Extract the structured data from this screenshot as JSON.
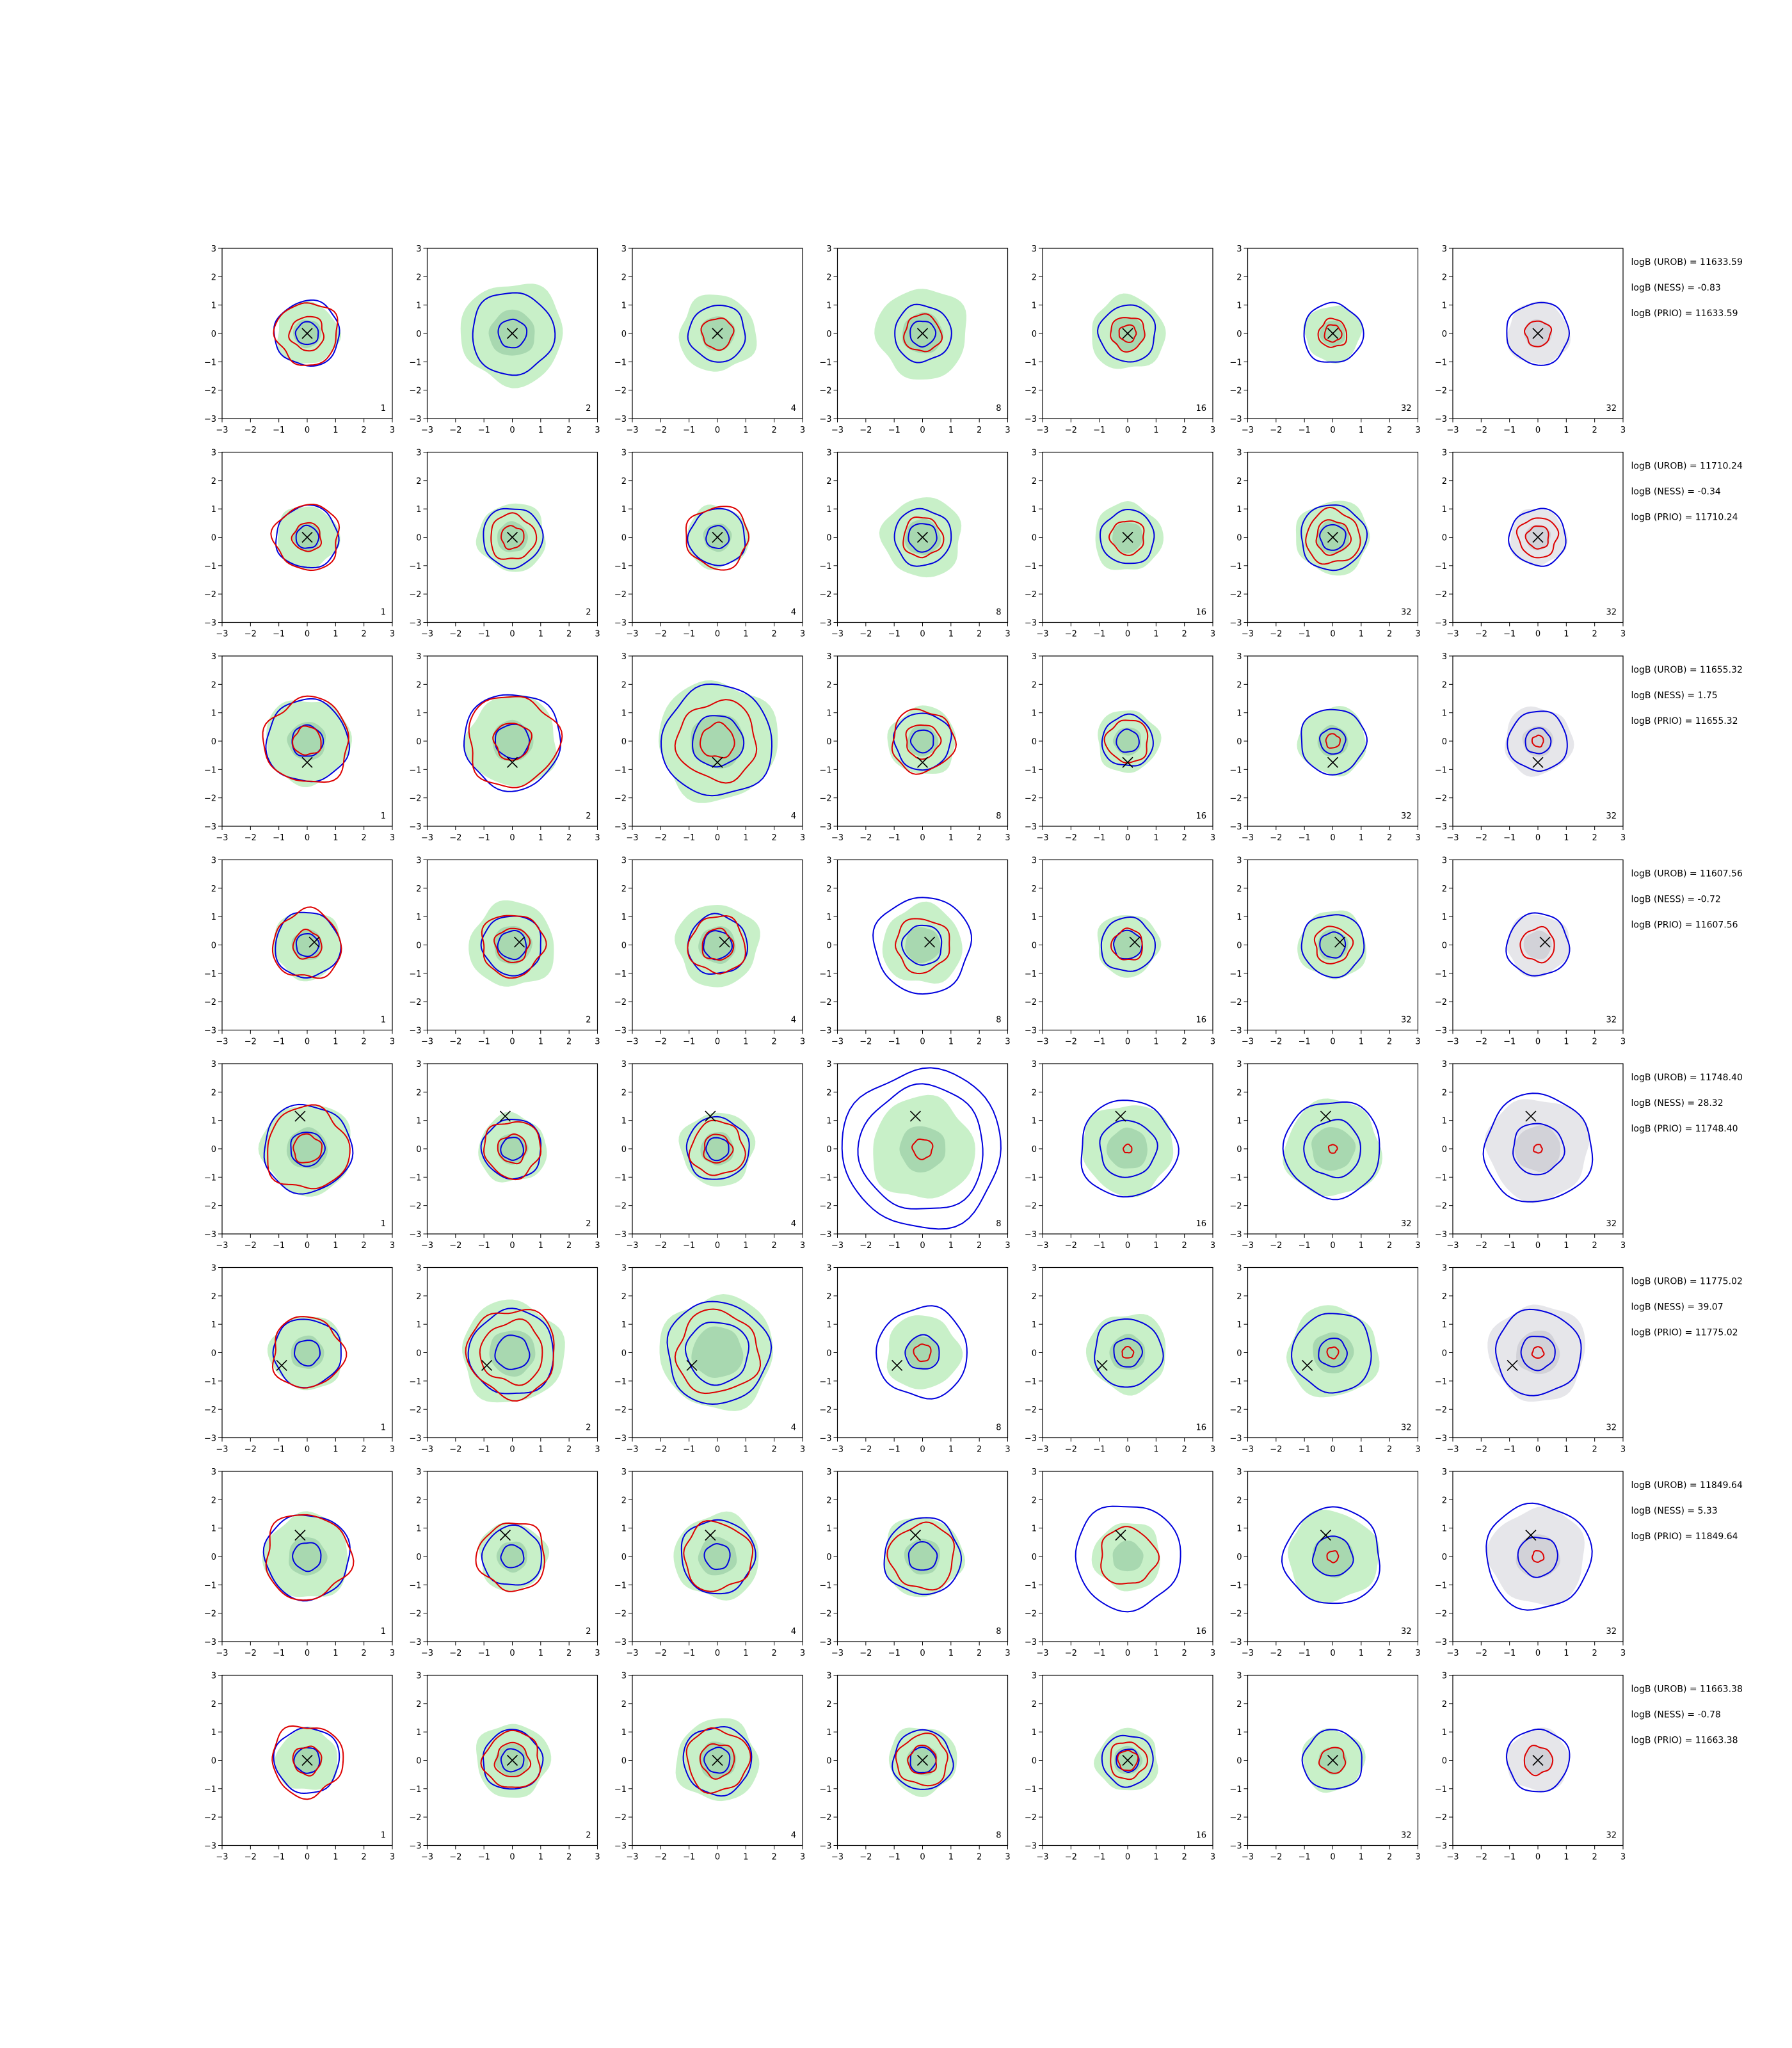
{
  "colors": {
    "shade_green": "#c8f0c8",
    "shade_green_dark": "#a8d8b0",
    "shade_grey": "#e6e6ea",
    "shade_grey_dark": "#d2d2d8",
    "blue_contour": "#0000dd",
    "red_contour": "#dd0000",
    "marker": "#000000",
    "frame": "#000000"
  },
  "chart_data": {
    "type": "contour",
    "xlim": [
      -3,
      3
    ],
    "ylim": [
      -3,
      3
    ],
    "ticks": [
      "−3",
      "−2",
      "−1",
      "0",
      "1",
      "2",
      "3"
    ],
    "tick_values": [
      -3,
      -2,
      -1,
      0,
      1,
      2,
      3
    ],
    "column_labels": [
      "1",
      "2",
      "4",
      "8",
      "16",
      "32",
      "32"
    ],
    "last_column_shade": "grey",
    "rows": [
      {
        "marker": [
          0,
          0
        ],
        "stats": [
          "logB (UROB) = 11633.59",
          "logB (NESS) = -0.83",
          "logB (PRIO) = 11633.59"
        ],
        "panels": [
          {
            "shade": 1.1,
            "blue": [
              1.15,
              0.4
            ],
            "red": [
              1.1,
              0.6
            ]
          },
          {
            "shade": 1.8,
            "blue": [
              1.45,
              0.5
            ],
            "red": []
          },
          {
            "shade": 1.35,
            "blue": [
              1.0
            ],
            "red": [
              0.55
            ]
          },
          {
            "shade": 1.6,
            "blue": [
              1.0,
              0.45
            ],
            "red": [
              0.65
            ]
          },
          {
            "shade": 1.3,
            "blue": [
              1.0
            ],
            "red": [
              0.6,
              0.3
            ]
          },
          {
            "shade": 1.0,
            "blue": [
              1.05
            ],
            "red": [
              0.5,
              0.3
            ]
          },
          {
            "shade": 1.1,
            "blue": [
              1.1
            ],
            "red": [
              0.45
            ]
          }
        ]
      },
      {
        "marker": [
          0,
          0
        ],
        "stats": [
          "logB (UROB) = 11710.24",
          "logB (NESS) = -0.34",
          "logB (PRIO) = 11710.24"
        ],
        "panels": [
          {
            "shade": 1.1,
            "blue": [
              1.1,
              0.4
            ],
            "red": [
              1.15,
              0.5
            ]
          },
          {
            "shade": 1.2,
            "blue": [
              1.05
            ],
            "red": [
              0.8,
              0.4
            ]
          },
          {
            "shade": 1.1,
            "blue": [
              1.0,
              0.4
            ],
            "red": [
              1.1
            ]
          },
          {
            "shade": 1.4,
            "blue": [
              1.0,
              0.5
            ],
            "red": [
              0.7
            ]
          },
          {
            "shade": 1.2,
            "blue": [
              0.95
            ],
            "red": [
              0.6
            ]
          },
          {
            "shade": 1.3,
            "blue": [
              1.15,
              0.45
            ],
            "red": [
              0.95,
              0.6
            ]
          },
          {
            "shade": 1.0,
            "blue": [
              1.0
            ],
            "red": [
              0.7,
              0.4
            ]
          }
        ]
      },
      {
        "marker": [
          0,
          -0.75
        ],
        "stats": [
          "logB (UROB) = 11655.32",
          "logB (NESS) = 1.75",
          "logB (PRIO) = 11655.32"
        ],
        "panels": [
          {
            "shade": 1.5,
            "blue": [
              1.45,
              0.55
            ],
            "red": [
              1.5,
              0.5
            ]
          },
          {
            "shade": 1.6,
            "blue": [
              1.7,
              0.6
            ],
            "red": [
              1.6,
              0.65
            ]
          },
          {
            "shade": 2.1,
            "blue": [
              1.95,
              0.9
            ],
            "red": [
              1.4,
              0.6
            ]
          },
          {
            "shade": 1.2,
            "blue": [
              1.0,
              0.4
            ],
            "red": [
              1.1,
              0.6
            ]
          },
          {
            "shade": 1.1,
            "blue": [
              0.9,
              0.4
            ],
            "red": [
              0.75
            ]
          },
          {
            "shade": 1.2,
            "blue": [
              1.15,
              0.45
            ],
            "red": [
              0.25
            ]
          },
          {
            "shade": 1.2,
            "blue": [
              1.05,
              0.45
            ],
            "red": [
              0.2
            ]
          }
        ]
      },
      {
        "marker": [
          0.25,
          0.1
        ],
        "stats": [
          "logB (UROB) = 11607.56",
          "logB (NESS) = -0.72",
          "logB (PRIO) = 11607.56"
        ],
        "panels": [
          {
            "shade": 1.2,
            "blue": [
              1.15,
              0.4
            ],
            "red": [
              1.2,
              0.5
            ]
          },
          {
            "shade": 1.5,
            "blue": [
              1.05,
              0.5
            ],
            "red": [
              1.1,
              0.6
            ]
          },
          {
            "shade": 1.45,
            "blue": [
              1.05,
              0.5
            ],
            "red": [
              1.0,
              0.55
            ]
          },
          {
            "shade": 1.4,
            "blue": [
              1.7,
              0.7
            ],
            "red": [
              0.95
            ]
          },
          {
            "shade": 1.1,
            "blue": [
              0.95,
              0.5
            ],
            "red": [
              0.55
            ]
          },
          {
            "shade": 1.2,
            "blue": [
              1.1,
              0.45
            ],
            "red": [
              0.65
            ]
          },
          {
            "shade": 1.1,
            "blue": [
              1.1
            ],
            "red": [
              0.6
            ]
          }
        ]
      },
      {
        "marker": [
          -0.25,
          1.15
        ],
        "stats": [
          "logB (UROB) = 11748.40",
          "logB (NESS) = 28.32",
          "logB (PRIO) = 11748.40"
        ],
        "panels": [
          {
            "shade": 1.6,
            "blue": [
              1.55,
              0.6
            ],
            "red": [
              1.45,
              0.5
            ]
          },
          {
            "shade": 1.2,
            "blue": [
              1.05,
              0.4
            ],
            "red": [
              1.0,
              0.5
            ]
          },
          {
            "shade": 1.3,
            "blue": [
              1.1,
              0.4
            ],
            "red": [
              0.95,
              0.5
            ]
          },
          {
            "shade": 1.8,
            "blue": [
              2.8,
              2.2
            ],
            "red": [
              0.35
            ]
          },
          {
            "shade": 1.6,
            "blue": [
              1.7,
              1.0
            ],
            "red": [
              0.15
            ]
          },
          {
            "shade": 1.7,
            "blue": [
              1.7,
              1.0
            ],
            "red": [
              0.15
            ]
          },
          {
            "shade": 1.8,
            "blue": [
              1.9,
              0.9
            ],
            "red": [
              0.15
            ]
          }
        ]
      },
      {
        "marker": [
          -0.9,
          -0.45
        ],
        "stats": [
          "logB (UROB) = 11775.02",
          "logB (NESS) = 39.07",
          "logB (PRIO) = 11775.02"
        ],
        "panels": [
          {
            "shade": 1.3,
            "blue": [
              1.2,
              0.45
            ],
            "red": [
              1.25
            ]
          },
          {
            "shade": 1.8,
            "blue": [
              1.5,
              0.6
            ],
            "red": [
              1.55,
              1.1
            ]
          },
          {
            "shade": 2.0,
            "blue": [
              1.8,
              1.1
            ],
            "red": [
              1.45
            ]
          },
          {
            "shade": 1.3,
            "blue": [
              1.6,
              0.6
            ],
            "red": [
              0.3
            ]
          },
          {
            "shade": 1.4,
            "blue": [
              1.2,
              0.5
            ],
            "red": [
              0.2
            ]
          },
          {
            "shade": 1.6,
            "blue": [
              1.4,
              0.5
            ],
            "red": [
              0.2
            ]
          },
          {
            "shade": 1.7,
            "blue": [
              1.5,
              0.6
            ],
            "red": [
              0.2
            ]
          }
        ]
      },
      {
        "marker": [
          -0.25,
          0.75
        ],
        "stats": [
          "logB (UROB) = 11849.64",
          "logB (NESS) = 5.33",
          "logB (PRIO) = 11849.64"
        ],
        "panels": [
          {
            "shade": 1.5,
            "blue": [
              1.5,
              0.5
            ],
            "red": [
              1.5
            ]
          },
          {
            "shade": 1.2,
            "blue": [
              1.05,
              0.4
            ],
            "red": [
              1.2
            ]
          },
          {
            "shade": 1.5,
            "blue": [
              1.3,
              0.45
            ],
            "red": [
              1.2
            ]
          },
          {
            "shade": 1.4,
            "blue": [
              1.35,
              0.5
            ],
            "red": [
              1.15
            ]
          },
          {
            "shade": 1.2,
            "blue": [
              1.85
            ],
            "red": [
              1.0
            ]
          },
          {
            "shade": 1.6,
            "blue": [
              1.7,
              0.7
            ],
            "red": [
              0.2
            ]
          },
          {
            "shade": 1.7,
            "blue": [
              1.85,
              0.7
            ],
            "red": [
              0.2
            ]
          }
        ]
      },
      {
        "marker": [
          0,
          0
        ],
        "stats": [
          "logB (UROB) = 11663.38",
          "logB (NESS) = -0.78",
          "logB (PRIO) = 11663.38"
        ],
        "panels": [
          {
            "shade": 1.1,
            "blue": [
              1.15,
              0.45
            ],
            "red": [
              1.25,
              0.5
            ]
          },
          {
            "shade": 1.3,
            "blue": [
              1.05,
              0.4
            ],
            "red": [
              1.0,
              0.6
            ]
          },
          {
            "shade": 1.45,
            "blue": [
              1.2,
              0.45
            ],
            "red": [
              1.1,
              0.6
            ]
          },
          {
            "shade": 1.2,
            "blue": [
              1.05,
              0.45
            ],
            "red": [
              0.9,
              0.5
            ]
          },
          {
            "shade": 1.1,
            "blue": [
              0.9,
              0.4
            ],
            "red": [
              0.65,
              0.35
            ]
          },
          {
            "shade": 1.1,
            "blue": [
              1.05
            ],
            "red": [
              0.45
            ]
          },
          {
            "shade": 1.1,
            "blue": [
              1.1
            ],
            "red": [
              0.5
            ]
          }
        ]
      }
    ]
  }
}
